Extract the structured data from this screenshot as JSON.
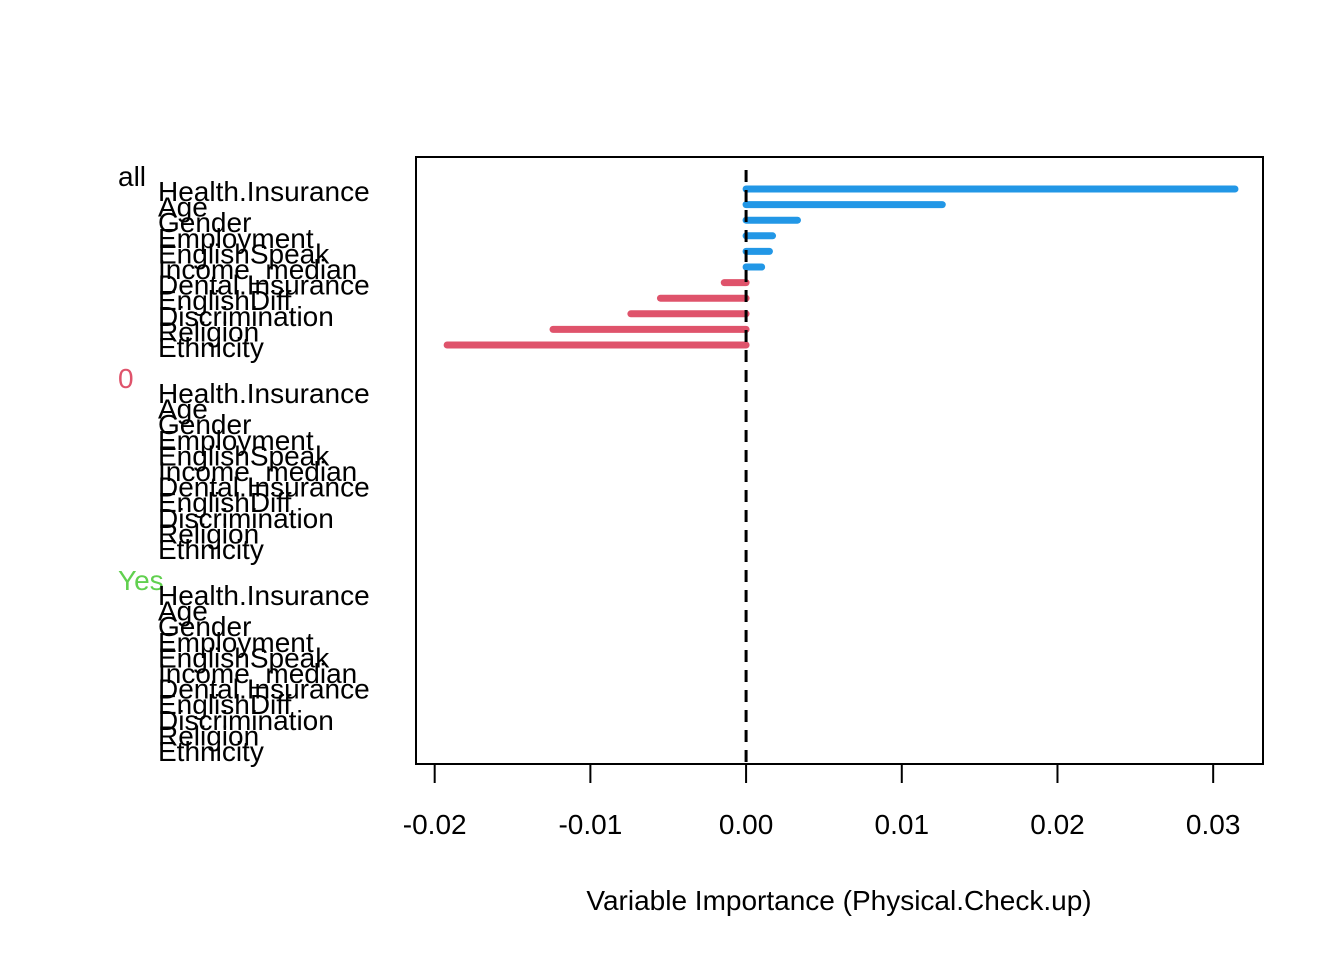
{
  "chart_data": {
    "type": "bar",
    "orientation": "horizontal",
    "xlabel": "Variable Importance (Physical.Check.up)",
    "ylabel": "",
    "title": "",
    "xlim": [
      -0.0212,
      0.0332
    ],
    "x_ticks": [
      -0.02,
      -0.01,
      0.0,
      0.01,
      0.02,
      0.03
    ],
    "x_tick_labels": [
      "-0.02",
      "-0.01",
      "0.00",
      "0.01",
      "0.02",
      "0.03"
    ],
    "reference_line": {
      "x": 0.0,
      "style": "dashed"
    },
    "variables": [
      "Health.Insurance",
      "Age",
      "Gender",
      "Employment",
      "EnglishSpeak",
      "Income_median",
      "Dental.Insurance",
      "EnglishDiff",
      "Discrimination",
      "Religion",
      "Ethnicity"
    ],
    "groups": [
      {
        "name": "all",
        "color": "#000000",
        "values": [
          0.0314,
          0.0126,
          0.0033,
          0.0017,
          0.0015,
          0.001,
          -0.0014,
          -0.0055,
          -0.0074,
          -0.0124,
          -0.0192
        ]
      },
      {
        "name": "0",
        "color": "#DF536B",
        "values": []
      },
      {
        "name": "Yes",
        "color": "#61D04F",
        "values": []
      }
    ],
    "colors": {
      "positive": "#2297E6",
      "negative": "#DF536B"
    },
    "grid": false,
    "legend": "none"
  }
}
